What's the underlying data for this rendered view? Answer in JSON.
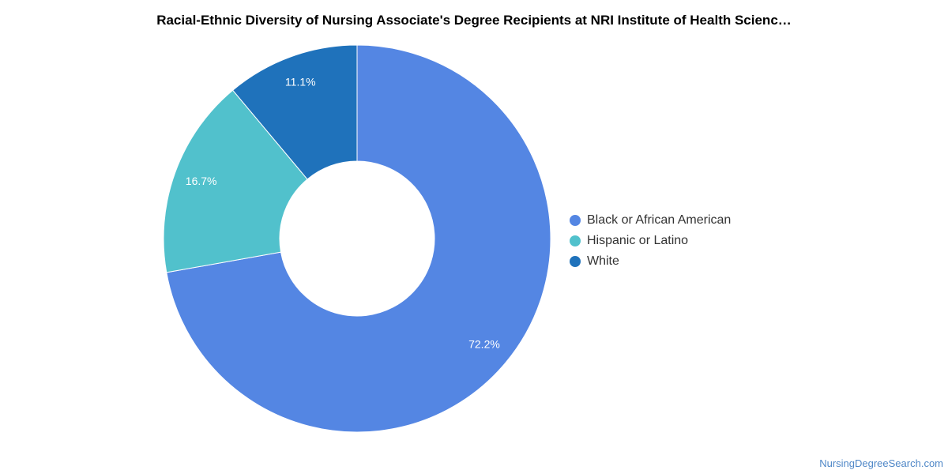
{
  "watermark": "NursingDegreeSearch.com",
  "chart_data": {
    "type": "pie",
    "variant": "donut",
    "title": "Racial-Ethnic Diversity of Nursing Associate's Degree Recipients at NRI Institute of Health Scienc…",
    "legend_position": "right",
    "slices": [
      {
        "name": "Black or African American",
        "value": 72.2,
        "label": "72.2%",
        "color": "#5486e3"
      },
      {
        "name": "Hispanic or Latino",
        "value": 16.7,
        "label": "16.7%",
        "color": "#51c1cc"
      },
      {
        "name": "White",
        "value": 11.1,
        "label": "11.1%",
        "color": "#1f72bb"
      }
    ]
  }
}
